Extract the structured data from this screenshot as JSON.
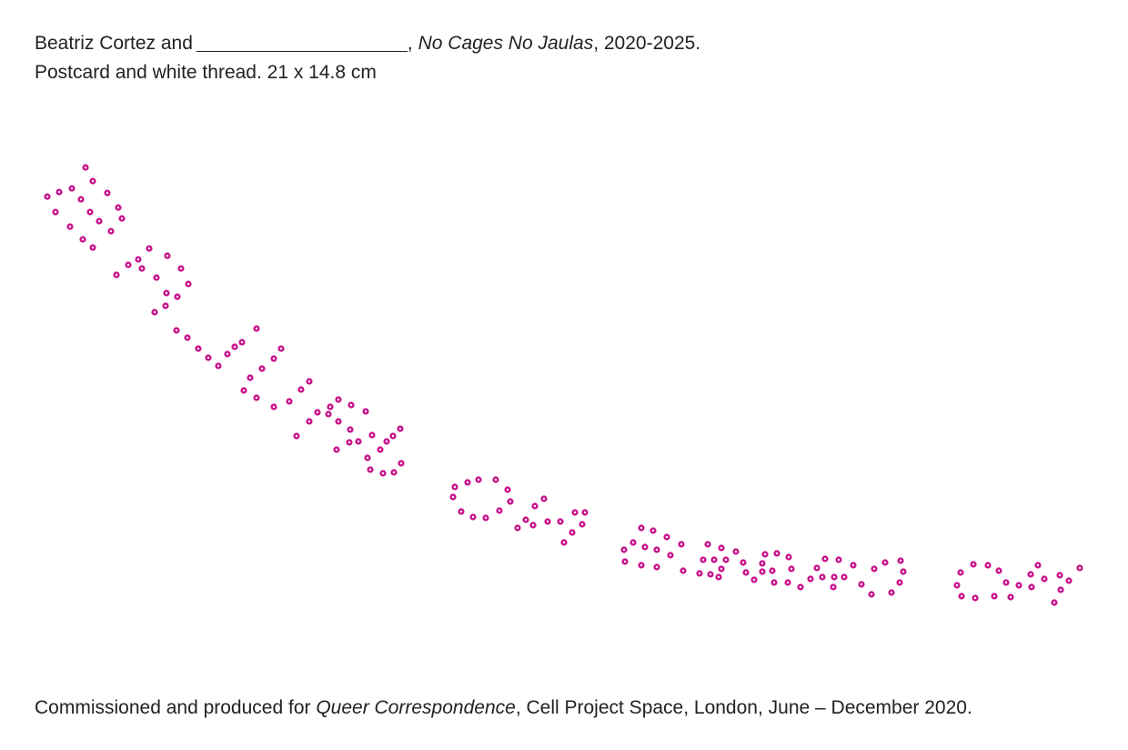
{
  "caption": {
    "artist": "Beatriz Cortez and",
    "title": "No Cages No Jaulas",
    "years": ", 2020-2025.",
    "medium": "Postcard and white thread. 21 x 14.8  cm"
  },
  "footer": {
    "prefix": "Commissioned and produced for ",
    "exhibition": "Queer Correspondence",
    "suffix": ", Cell Project Space, London, June – December 2020."
  },
  "artwork": {
    "dot_color": "#c8148c",
    "dot_inner": "#ffffff"
  }
}
